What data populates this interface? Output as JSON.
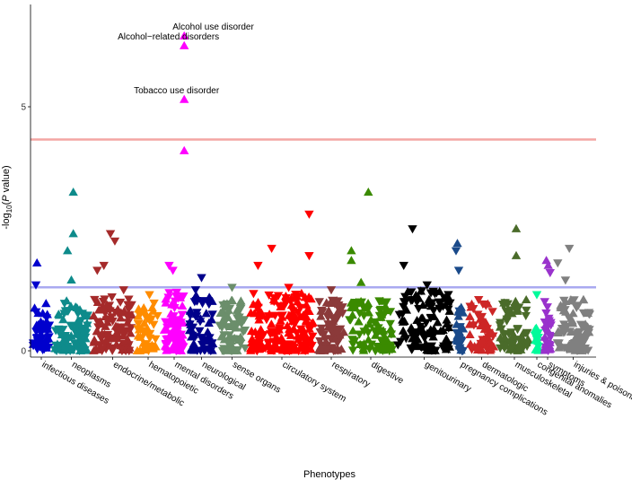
{
  "chart_data": {
    "type": "scatter",
    "title": "",
    "xlabel": "Phenotypes",
    "ylabel_prefix": "-log",
    "ylabel_sub": "10",
    "ylabel_open": "(",
    "ylabel_p": "P",
    "ylabel_suffix": " value)",
    "ylim": [
      -0.1,
      6.7
    ],
    "yticks": [
      0,
      5
    ],
    "thresholds": [
      {
        "name": "bonferroni",
        "value": 4.33,
        "color": "#f4a6a3"
      },
      {
        "name": "nominal",
        "value": 1.3,
        "color": "#a9a9f0"
      }
    ],
    "categories": [
      {
        "name": "infectious diseases",
        "color": "#0000cd",
        "n": 48,
        "base": 0.65,
        "extras": [
          [
            0.3,
            1.8,
            "up"
          ],
          [
            0.25,
            1.35,
            "down"
          ]
        ]
      },
      {
        "name": "neoplasms",
        "color": "#0e8b8b",
        "n": 95,
        "base": 0.7,
        "extras": [
          [
            0.55,
            3.25,
            "up"
          ],
          [
            0.55,
            2.4,
            "up"
          ],
          [
            0.4,
            2.05,
            "up"
          ],
          [
            0.5,
            1.45,
            "up"
          ]
        ]
      },
      {
        "name": "endocrine/metabolic",
        "color": "#a52a2a",
        "n": 105,
        "base": 0.75,
        "extras": [
          [
            0.45,
            2.4,
            "down"
          ],
          [
            0.55,
            2.25,
            "down"
          ],
          [
            0.15,
            1.65,
            "down"
          ],
          [
            0.3,
            1.75,
            "down"
          ],
          [
            0.75,
            1.25,
            "down"
          ]
        ]
      },
      {
        "name": "hematopoietic",
        "color": "#ff8c00",
        "n": 42,
        "base": 0.7,
        "extras": [
          [
            0.55,
            1.15,
            "down"
          ]
        ]
      },
      {
        "name": "mental disorders",
        "color": "#ff00ff",
        "n": 68,
        "base": 0.8,
        "extras": [
          [
            0.9,
            6.45,
            "up"
          ],
          [
            0.9,
            6.25,
            "up"
          ],
          [
            0.9,
            5.15,
            "up"
          ],
          [
            0.9,
            4.1,
            "up"
          ],
          [
            0.3,
            1.75,
            "down"
          ],
          [
            0.45,
            1.65,
            "down"
          ],
          [
            0.6,
            1.2,
            "down"
          ]
        ]
      },
      {
        "name": "neurological",
        "color": "#00008b",
        "n": 62,
        "base": 0.8,
        "extras": [
          [
            0.5,
            1.5,
            "down"
          ],
          [
            0.3,
            1.25,
            "down"
          ]
        ]
      },
      {
        "name": "sense organs",
        "color": "#6b8e6b",
        "n": 68,
        "base": 0.7,
        "extras": [
          [
            0.5,
            1.3,
            "down"
          ]
        ]
      },
      {
        "name": "circulatory system",
        "color": "#ff0000",
        "n": 170,
        "base": 0.8,
        "extras": [
          [
            0.9,
            2.8,
            "down"
          ],
          [
            0.9,
            1.95,
            "down"
          ],
          [
            0.35,
            2.1,
            "down"
          ],
          [
            0.15,
            1.75,
            "down"
          ],
          [
            0.6,
            1.3,
            "down"
          ]
        ]
      },
      {
        "name": "respiratory",
        "color": "#8b3a3a",
        "n": 75,
        "base": 0.7,
        "extras": [
          [
            0.5,
            1.25,
            "down"
          ]
        ]
      },
      {
        "name": "digestive",
        "color": "#3a8a00",
        "n": 95,
        "base": 0.7,
        "extras": [
          [
            0.45,
            3.25,
            "up"
          ],
          [
            0.1,
            2.05,
            "up"
          ],
          [
            0.1,
            1.85,
            "up"
          ],
          [
            0.3,
            1.4,
            "up"
          ]
        ]
      },
      {
        "name": "genitourinary",
        "color": "#000000",
        "n": 115,
        "base": 0.85,
        "extras": [
          [
            0.3,
            2.5,
            "down"
          ],
          [
            0.15,
            1.75,
            "down"
          ],
          [
            0.55,
            1.35,
            "down"
          ]
        ]
      },
      {
        "name": "pregnancy complications",
        "color": "#1a4a8a",
        "n": 28,
        "base": 0.6,
        "extras": [
          [
            0.3,
            2.2,
            "up"
          ],
          [
            0.2,
            2.05,
            "down"
          ],
          [
            0.4,
            1.65,
            "down"
          ]
        ]
      },
      {
        "name": "dermatologic",
        "color": "#cd2626",
        "n": 55,
        "base": 0.7,
        "extras": [
          [
            0.4,
            1.05,
            "down"
          ]
        ]
      },
      {
        "name": "musculoskeletal",
        "color": "#4a6b2a",
        "n": 72,
        "base": 0.7,
        "extras": [
          [
            0.55,
            2.5,
            "up"
          ],
          [
            0.55,
            1.95,
            "up"
          ]
        ]
      },
      {
        "name": "congenital anomalies",
        "color": "#00fa9a",
        "n": 14,
        "base": 0.4,
        "extras": [
          [
            0.5,
            1.15,
            "down"
          ]
        ]
      },
      {
        "name": "symptoms",
        "color": "#9932cc",
        "n": 30,
        "base": 0.7,
        "extras": [
          [
            0.4,
            1.85,
            "up"
          ],
          [
            0.55,
            1.75,
            "up"
          ],
          [
            0.7,
            1.6,
            "down"
          ]
        ]
      },
      {
        "name": "injuries & poisonings",
        "color": "#808080",
        "n": 85,
        "base": 0.7,
        "extras": [
          [
            0.4,
            2.1,
            "down"
          ],
          [
            0.1,
            1.8,
            "down"
          ],
          [
            0.3,
            1.45,
            "down"
          ]
        ]
      }
    ],
    "annotations": [
      {
        "text": "Alcohol use disorder",
        "category": "mental disorders",
        "y": 6.45,
        "align": "start"
      },
      {
        "text": "Alcohol−related disorders",
        "category": "mental disorders",
        "y": 6.25,
        "align": "end"
      },
      {
        "text": "Tobacco use disorder",
        "category": "mental disorders",
        "y": 5.15,
        "align": "end"
      }
    ]
  }
}
